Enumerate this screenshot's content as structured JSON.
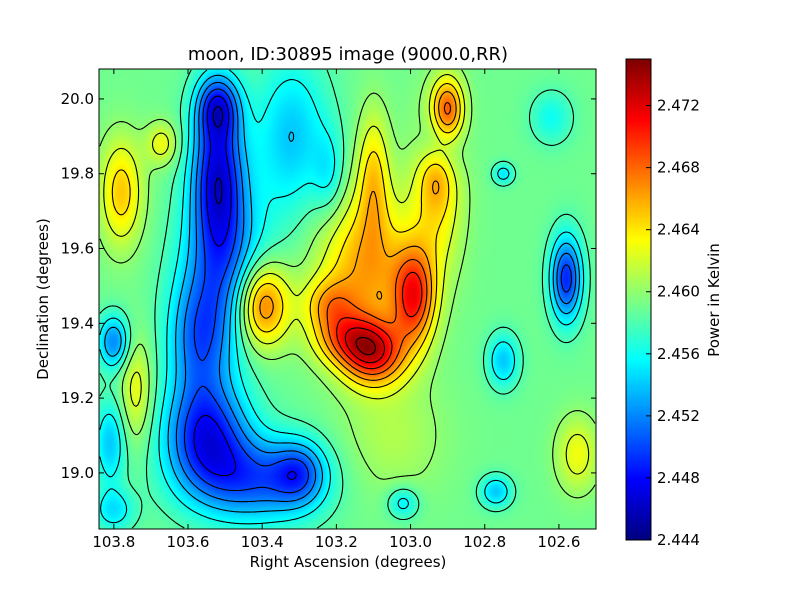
{
  "chart_data": {
    "type": "heatmap",
    "title": "moon, ID:30895 image (9000.0,RR)",
    "xlabel": "Right Ascension (degrees)",
    "ylabel": "Declination (degrees)",
    "xlim": [
      103.84,
      102.5
    ],
    "ylim": [
      18.85,
      20.08
    ],
    "x_ticks": [
      {
        "value": 103.8,
        "label": "103.8"
      },
      {
        "value": 103.6,
        "label": "103.6"
      },
      {
        "value": 103.4,
        "label": "103.4"
      },
      {
        "value": 103.2,
        "label": "103.2"
      },
      {
        "value": 103.0,
        "label": "103.0"
      },
      {
        "value": 102.8,
        "label": "102.8"
      },
      {
        "value": 102.6,
        "label": "102.6"
      }
    ],
    "y_ticks": [
      {
        "value": 19.0,
        "label": "19.0"
      },
      {
        "value": 19.2,
        "label": "19.2"
      },
      {
        "value": 19.4,
        "label": "19.4"
      },
      {
        "value": 19.6,
        "label": "19.6"
      },
      {
        "value": 19.8,
        "label": "19.8"
      },
      {
        "value": 20.0,
        "label": "20.0"
      }
    ],
    "colorbar": {
      "label": "Power in Kelvin",
      "range": [
        2.444,
        2.475
      ],
      "colormap": "jet",
      "ticks": [
        {
          "value": 2.444,
          "label": "2.444"
        },
        {
          "value": 2.448,
          "label": "2.448"
        },
        {
          "value": 2.452,
          "label": "2.452"
        },
        {
          "value": 2.456,
          "label": "2.456"
        },
        {
          "value": 2.46,
          "label": "2.460"
        },
        {
          "value": 2.464,
          "label": "2.464"
        },
        {
          "value": 2.468,
          "label": "2.468"
        },
        {
          "value": 2.472,
          "label": "2.472"
        }
      ]
    },
    "baseline": 2.459,
    "features": [
      {
        "ra": 103.52,
        "dec": 19.8,
        "sx": 0.05,
        "sy": 0.14,
        "amp": -0.011
      },
      {
        "ra": 103.52,
        "dec": 19.98,
        "sx": 0.04,
        "sy": 0.06,
        "amp": -0.008
      },
      {
        "ra": 103.5,
        "dec": 19.55,
        "sx": 0.08,
        "sy": 0.15,
        "amp": -0.007
      },
      {
        "ra": 103.57,
        "dec": 19.35,
        "sx": 0.06,
        "sy": 0.12,
        "amp": -0.007
      },
      {
        "ra": 103.55,
        "dec": 19.1,
        "sx": 0.08,
        "sy": 0.1,
        "amp": -0.01
      },
      {
        "ra": 103.42,
        "dec": 18.98,
        "sx": 0.12,
        "sy": 0.08,
        "amp": -0.008
      },
      {
        "ra": 103.3,
        "dec": 19.0,
        "sx": 0.05,
        "sy": 0.06,
        "amp": -0.006
      },
      {
        "ra": 103.32,
        "dec": 19.9,
        "sx": 0.07,
        "sy": 0.15,
        "amp": -0.005
      },
      {
        "ra": 103.22,
        "dec": 19.8,
        "sx": 0.03,
        "sy": 0.08,
        "amp": -0.003
      },
      {
        "ra": 103.8,
        "dec": 19.35,
        "sx": 0.03,
        "sy": 0.05,
        "amp": -0.007
      },
      {
        "ra": 103.81,
        "dec": 19.08,
        "sx": 0.03,
        "sy": 0.08,
        "amp": -0.005
      },
      {
        "ra": 103.8,
        "dec": 18.9,
        "sx": 0.04,
        "sy": 0.04,
        "amp": -0.004
      },
      {
        "ra": 102.92,
        "dec": 19.88,
        "sx": 0.04,
        "sy": 0.06,
        "amp": -0.004
      },
      {
        "ra": 102.93,
        "dec": 19.8,
        "sx": 0.03,
        "sy": 0.06,
        "amp": 0.003
      },
      {
        "ra": 102.58,
        "dec": 19.52,
        "sx": 0.03,
        "sy": 0.08,
        "amp": -0.01
      },
      {
        "ra": 102.75,
        "dec": 19.3,
        "sx": 0.03,
        "sy": 0.05,
        "amp": -0.005
      },
      {
        "ra": 102.75,
        "dec": 19.8,
        "sx": 0.02,
        "sy": 0.02,
        "amp": -0.004
      },
      {
        "ra": 102.77,
        "dec": 18.95,
        "sx": 0.03,
        "sy": 0.03,
        "amp": -0.005
      },
      {
        "ra": 102.62,
        "dec": 19.95,
        "sx": 0.04,
        "sy": 0.05,
        "amp": -0.003
      },
      {
        "ra": 103.12,
        "dec": 19.55,
        "sx": 0.09,
        "sy": 0.14,
        "amp": 0.007
      },
      {
        "ra": 103.1,
        "dec": 19.8,
        "sx": 0.03,
        "sy": 0.12,
        "amp": 0.005
      },
      {
        "ra": 103.1,
        "dec": 19.32,
        "sx": 0.06,
        "sy": 0.06,
        "amp": 0.011
      },
      {
        "ra": 103.18,
        "dec": 19.36,
        "sx": 0.06,
        "sy": 0.05,
        "amp": 0.006
      },
      {
        "ra": 102.99,
        "dec": 19.47,
        "sx": 0.04,
        "sy": 0.09,
        "amp": 0.01
      },
      {
        "ra": 103.4,
        "dec": 19.45,
        "sx": 0.05,
        "sy": 0.08,
        "amp": 0.01
      },
      {
        "ra": 103.22,
        "dec": 19.45,
        "sx": 0.05,
        "sy": 0.05,
        "amp": 0.005
      },
      {
        "ra": 102.9,
        "dec": 19.97,
        "sx": 0.03,
        "sy": 0.06,
        "amp": 0.009
      },
      {
        "ra": 102.93,
        "dec": 19.75,
        "sx": 0.05,
        "sy": 0.15,
        "amp": 0.005
      },
      {
        "ra": 103.78,
        "dec": 19.75,
        "sx": 0.04,
        "sy": 0.1,
        "amp": 0.006
      },
      {
        "ra": 103.67,
        "dec": 19.88,
        "sx": 0.03,
        "sy": 0.04,
        "amp": 0.004
      },
      {
        "ra": 103.74,
        "dec": 19.22,
        "sx": 0.03,
        "sy": 0.1,
        "amp": 0.004
      },
      {
        "ra": 102.55,
        "dec": 19.05,
        "sx": 0.04,
        "sy": 0.07,
        "amp": 0.004
      },
      {
        "ra": 103.05,
        "dec": 19.1,
        "sx": 0.1,
        "sy": 0.12,
        "amp": 0.002
      },
      {
        "ra": 103.02,
        "dec": 18.92,
        "sx": 0.03,
        "sy": 0.03,
        "amp": -0.004
      }
    ],
    "grid": false
  }
}
